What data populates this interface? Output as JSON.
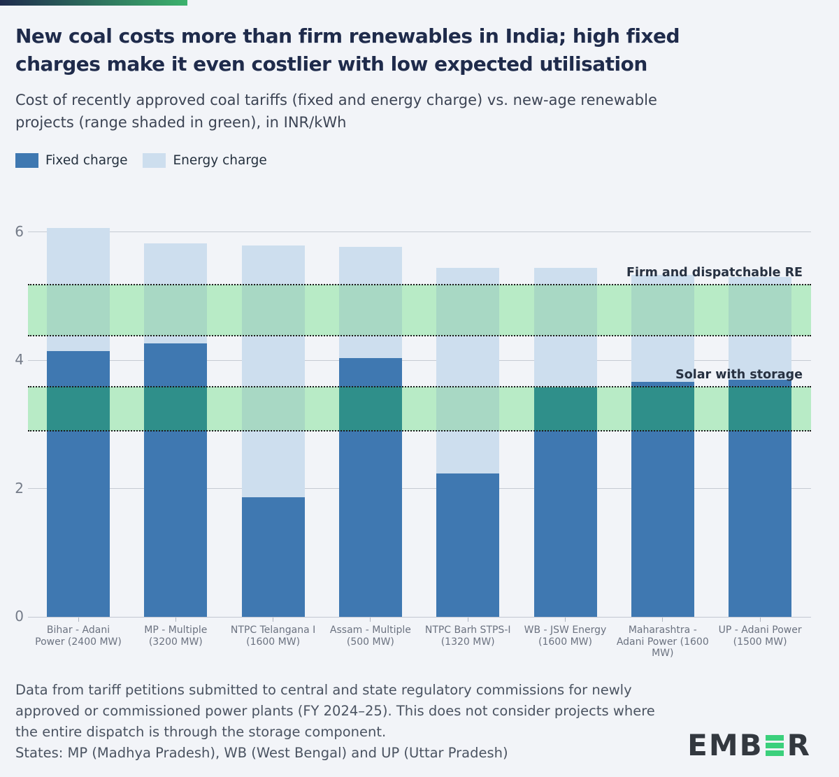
{
  "header": {
    "title_lines": [
      "New coal costs more than firm renewables in India; high fixed",
      "charges make it even costlier with low expected utilisation"
    ],
    "subtitle_lines": [
      "Cost of recently approved coal tariffs (fixed and energy charge) vs. new-age renewable",
      "projects (range shaded in green), in INR/kWh"
    ]
  },
  "colors": {
    "background": "#f2f4f8",
    "accent_gradient_from": "#1f2b4d",
    "accent_gradient_to": "#3cb26d",
    "fixed_charge": "#3f78b1",
    "energy_charge": "#cddeee",
    "band_green": "#b8ebc6",
    "band_over_energy": "#a8d8c4",
    "band_over_fixed": "#2f8f8a",
    "gridline": "#c6cbd3",
    "title_text": "#1f2b4b",
    "logo_green": "#3bd07c"
  },
  "chart_data": {
    "type": "bar",
    "stacked": true,
    "unit": "INR/kWh",
    "title": "Cost of recently approved coal tariffs (fixed and energy charge) vs. new-age renewable projects (range shaded in green), in INR/kWh",
    "xlabel": "",
    "ylabel": "",
    "ylim": [
      0,
      6.35
    ],
    "yticks": [
      0,
      2,
      4,
      6
    ],
    "grid": true,
    "legend_position": "top-left",
    "categories": [
      "Bihar - Adani Power (2400 MW)",
      "MP - Multiple (3200 MW)",
      "NTPC Telangana I (1600 MW)",
      "Assam - Multiple (500 MW)",
      "NTPC Barh STPS-I (1320 MW)",
      "WB - JSW Energy (1600 MW)",
      "Maharashtra - Adani Power (1600 MW)",
      "UP - Adani Power (1500 MW)"
    ],
    "series": [
      {
        "name": "Fixed charge",
        "color": "#3f78b1",
        "values": [
          4.15,
          4.27,
          1.87,
          4.04,
          2.24,
          3.58,
          3.66,
          3.7
        ]
      },
      {
        "name": "Energy charge",
        "color": "#cddeee",
        "values": [
          1.92,
          1.56,
          3.92,
          1.73,
          3.2,
          1.86,
          1.67,
          1.6
        ]
      }
    ],
    "totals": [
      6.07,
      5.83,
      5.79,
      5.77,
      5.44,
      5.44,
      5.33,
      5.3
    ],
    "bands": [
      {
        "label": "Firm and dispatchable RE",
        "from": 4.39,
        "to": 5.18
      },
      {
        "label": "Solar with storage",
        "from": 2.9,
        "to": 3.59
      }
    ]
  },
  "footer": {
    "note_lines": [
      "Data from tariff petitions submitted to central and state regulatory commissions for newly",
      "approved or commissioned power plants (FY 2024–25). This does not consider projects where",
      "the entire dispatch is through the storage component."
    ],
    "states": "States: MP (Madhya Pradesh), WB (West Bengal) and UP (Uttar Pradesh)"
  },
  "logo": {
    "prefix": "EMB",
    "suffix": "R"
  }
}
